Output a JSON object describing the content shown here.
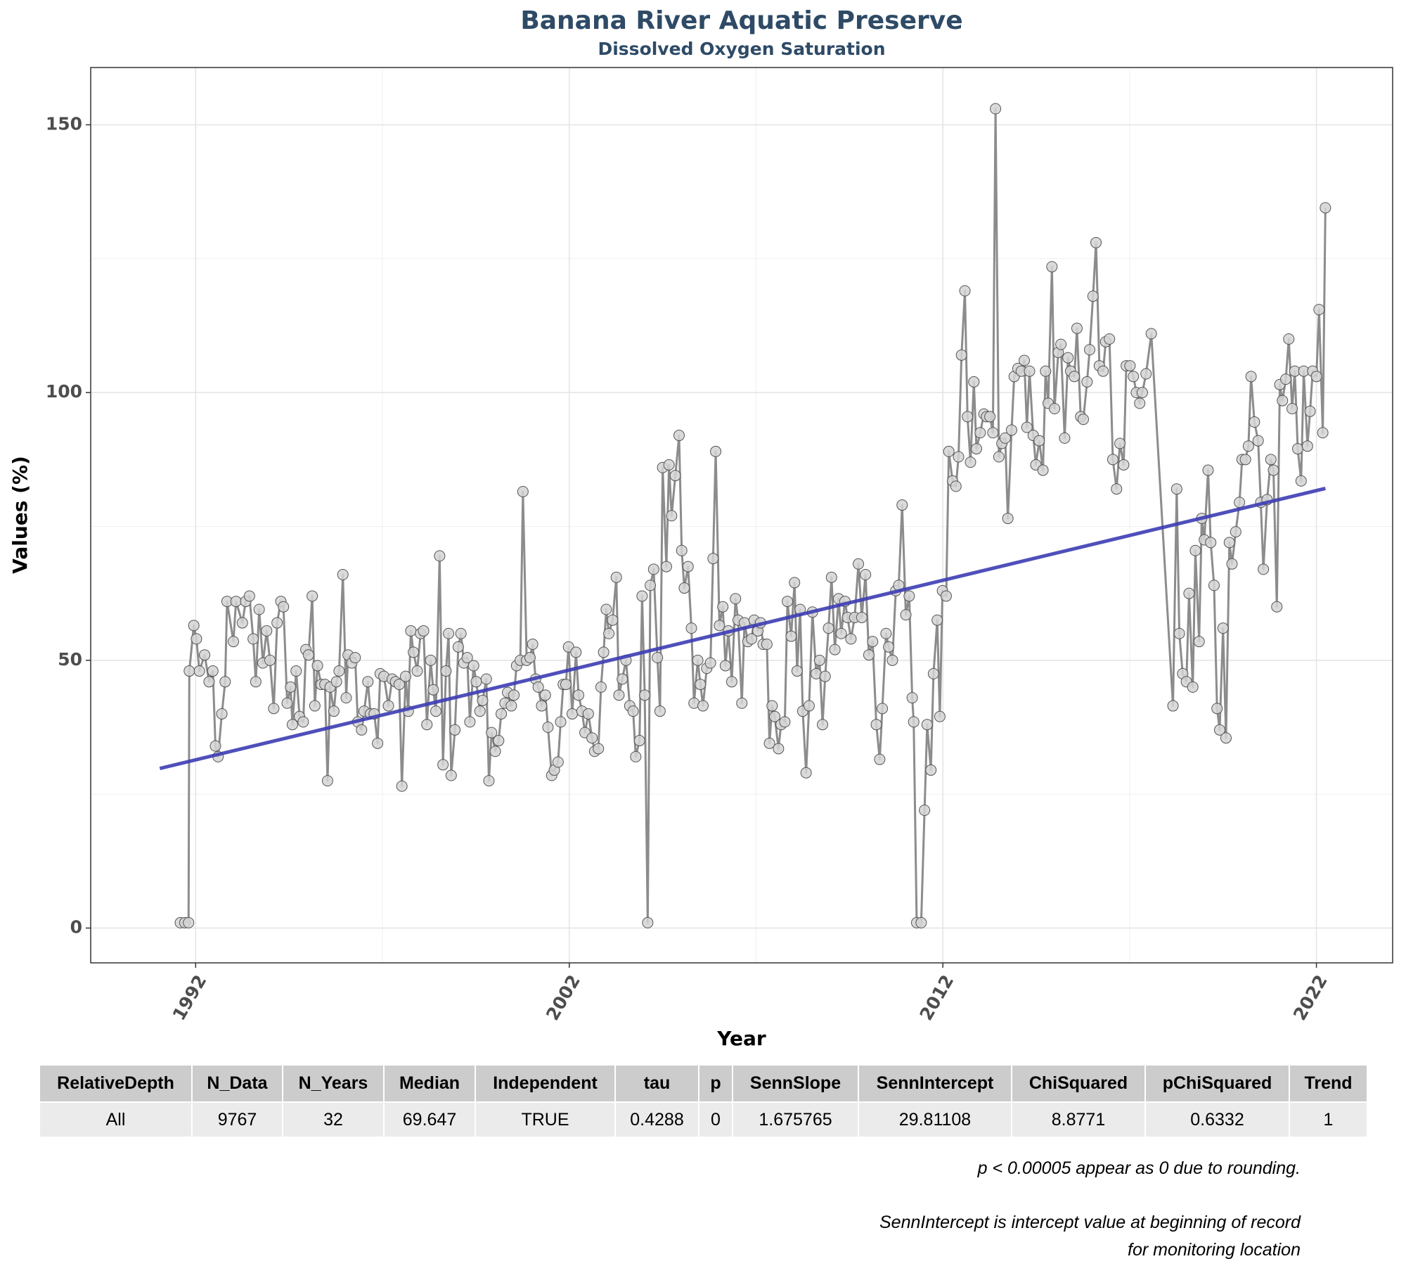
{
  "chart_data": {
    "type": "line",
    "title": "Banana River Aquatic Preserve",
    "subtitle": "Dissolved Oxygen Saturation",
    "x_label": "Year",
    "y_label": "Values (%)",
    "color": "#8c8c8c",
    "marker_color": "#d3d3d3",
    "marker_edge_color": "#555555",
    "x": [
      1991.59,
      1991.71,
      1991.81,
      1991.83,
      1991.95,
      1992.02,
      1992.1,
      1992.24,
      1992.36,
      1992.46,
      1992.53,
      1992.6,
      1992.7,
      1992.79,
      1992.84,
      1993.01,
      1993.08,
      1993.25,
      1993.34,
      1993.44,
      1993.54,
      1993.61,
      1993.7,
      1993.8,
      1993.9,
      1993.99,
      1994.09,
      1994.18,
      1994.28,
      1994.35,
      1994.45,
      1994.54,
      1994.59,
      1994.69,
      1994.78,
      1994.88,
      1994.95,
      1995.02,
      1995.12,
      1995.19,
      1995.26,
      1995.36,
      1995.46,
      1995.53,
      1995.6,
      1995.7,
      1995.77,
      1995.84,
      1995.94,
      1996.03,
      1996.08,
      1996.18,
      1996.27,
      1996.34,
      1996.44,
      1996.51,
      1996.61,
      1996.68,
      1996.78,
      1996.87,
      1996.94,
      1997.04,
      1997.16,
      1997.26,
      1997.35,
      1997.45,
      1997.52,
      1997.62,
      1997.69,
      1997.76,
      1997.83,
      1997.93,
      1998.02,
      1998.1,
      1998.19,
      1998.29,
      1998.36,
      1998.43,
      1998.53,
      1998.62,
      1998.7,
      1998.77,
      1998.84,
      1998.94,
      1999.03,
      1999.1,
      1999.18,
      1999.27,
      1999.34,
      1999.44,
      1999.51,
      1999.61,
      1999.68,
      1999.78,
      1999.85,
      1999.92,
      2000.02,
      2000.11,
      2000.18,
      2000.28,
      2000.35,
      2000.45,
      2000.52,
      2000.59,
      2000.69,
      2000.76,
      2000.86,
      2000.95,
      2001.02,
      2001.1,
      2001.17,
      2001.26,
      2001.36,
      2001.43,
      2001.53,
      2001.6,
      2001.7,
      2001.77,
      2001.84,
      2001.91,
      2001.98,
      2002.08,
      2002.18,
      2002.25,
      2002.34,
      2002.42,
      2002.51,
      2002.61,
      2002.68,
      2002.78,
      2002.85,
      2002.92,
      2002.99,
      2003.06,
      2003.16,
      2003.26,
      2003.33,
      2003.42,
      2003.52,
      2003.62,
      2003.71,
      2003.78,
      2003.88,
      2003.95,
      2004.02,
      2004.1,
      2004.17,
      2004.26,
      2004.36,
      2004.43,
      2004.5,
      2004.6,
      2004.67,
      2004.74,
      2004.84,
      2004.94,
      2005.01,
      2005.08,
      2005.18,
      2005.27,
      2005.34,
      2005.44,
      2005.51,
      2005.58,
      2005.68,
      2005.78,
      2005.85,
      2005.92,
      2006.02,
      2006.11,
      2006.18,
      2006.26,
      2006.35,
      2006.45,
      2006.52,
      2006.62,
      2006.69,
      2006.78,
      2006.88,
      2006.95,
      2007.05,
      2007.12,
      2007.19,
      2007.29,
      2007.36,
      2007.43,
      2007.5,
      2007.6,
      2007.67,
      2007.77,
      2007.84,
      2007.94,
      2008.03,
      2008.1,
      2008.18,
      2008.25,
      2008.34,
      2008.42,
      2008.51,
      2008.61,
      2008.7,
      2008.78,
      2008.85,
      2008.94,
      2009.02,
      2009.11,
      2009.21,
      2009.28,
      2009.38,
      2009.45,
      2009.54,
      2009.64,
      2009.74,
      2009.83,
      2009.93,
      2010.02,
      2010.12,
      2010.22,
      2010.31,
      2010.38,
      2010.48,
      2010.55,
      2010.65,
      2010.74,
      2010.82,
      2010.91,
      2011.01,
      2011.1,
      2011.18,
      2011.22,
      2011.3,
      2011.42,
      2011.51,
      2011.58,
      2011.68,
      2011.75,
      2011.85,
      2011.92,
      2011.99,
      2012.09,
      2012.16,
      2012.26,
      2012.35,
      2012.42,
      2012.5,
      2012.59,
      2012.66,
      2012.74,
      2012.83,
      2012.9,
      2013.0,
      2013.1,
      2013.17,
      2013.26,
      2013.34,
      2013.41,
      2013.5,
      2013.58,
      2013.67,
      2013.74,
      2013.84,
      2013.91,
      2014.01,
      2014.1,
      2014.18,
      2014.25,
      2014.32,
      2014.42,
      2014.49,
      2014.58,
      2014.68,
      2014.75,
      2014.82,
      2014.92,
      2014.99,
      2015.09,
      2015.16,
      2015.26,
      2015.35,
      2015.42,
      2015.52,
      2015.59,
      2015.69,
      2015.76,
      2015.86,
      2015.93,
      2016.02,
      2016.1,
      2016.19,
      2016.29,
      2016.36,
      2016.46,
      2016.55,
      2016.65,
      2016.74,
      2016.84,
      2016.91,
      2017.01,
      2017.1,
      2017.18,
      2017.27,
      2017.34,
      2017.44,
      2017.58,
      2018.16,
      2018.26,
      2018.33,
      2018.42,
      2018.52,
      2018.59,
      2018.69,
      2018.76,
      2018.86,
      2018.93,
      2019.0,
      2019.1,
      2019.17,
      2019.26,
      2019.34,
      2019.41,
      2019.5,
      2019.58,
      2019.67,
      2019.74,
      2019.84,
      2019.94,
      2020.01,
      2020.1,
      2020.18,
      2020.25,
      2020.34,
      2020.44,
      2020.51,
      2020.58,
      2020.68,
      2020.78,
      2020.85,
      2020.94,
      2021.02,
      2021.09,
      2021.18,
      2021.26,
      2021.35,
      2021.42,
      2021.5,
      2021.59,
      2021.66,
      2021.76,
      2021.83,
      2021.9,
      2022.0,
      2022.07,
      2022.17,
      2022.24
    ],
    "values": [
      1,
      1,
      1,
      48,
      56.5,
      54,
      48,
      51,
      46,
      48,
      34,
      32,
      40,
      46,
      61,
      53.5,
      61,
      57,
      61,
      62,
      54,
      46,
      59.5,
      49.5,
      55.5,
      50,
      41,
      57,
      61,
      60,
      42,
      45,
      38,
      48,
      39.5,
      38.5,
      52,
      51,
      62,
      41.5,
      49,
      45.5,
      45.5,
      27.5,
      45,
      40.5,
      46,
      48,
      66,
      43,
      51,
      49.5,
      50.5,
      38.5,
      37,
      40.5,
      46,
      40,
      40,
      34.5,
      47.5,
      47,
      41.5,
      46.5,
      46,
      45.5,
      26.5,
      47,
      40.5,
      55.5,
      51.5,
      48,
      55,
      55.5,
      38,
      50,
      44.5,
      40.5,
      69.5,
      30.5,
      48,
      55,
      28.5,
      37,
      52.5,
      55,
      49.5,
      50.5,
      38.5,
      49,
      46,
      40.5,
      42.5,
      46.5,
      27.5,
      36.5,
      33,
      35,
      40,
      42,
      44,
      41.5,
      43.5,
      49,
      50,
      81.5,
      50,
      50.5,
      53,
      46.5,
      45,
      41.5,
      43.5,
      37.5,
      28.5,
      29.5,
      31,
      38.5,
      45.5,
      45.5,
      52.5,
      40,
      51.5,
      43.5,
      40.5,
      36.5,
      40,
      35.5,
      33,
      33.5,
      45,
      51.5,
      59.5,
      55,
      57.5,
      65.5,
      43.5,
      46.5,
      50,
      41.5,
      40.5,
      32,
      35,
      62,
      43.5,
      1,
      64,
      67,
      50.5,
      40.5,
      86,
      67.5,
      86.5,
      77,
      84.5,
      92,
      70.5,
      63.5,
      67.5,
      56,
      42,
      50,
      45.5,
      41.5,
      48.5,
      49.5,
      69,
      89,
      56.5,
      60,
      49,
      55.5,
      46,
      61.5,
      57.5,
      42,
      57,
      53.5,
      54,
      57.5,
      55.5,
      57,
      53,
      53,
      34.5,
      41.5,
      39.5,
      33.5,
      38,
      38.5,
      61,
      54.5,
      64.5,
      48,
      59.5,
      40.5,
      29,
      41.5,
      59,
      47.5,
      50,
      38,
      47,
      56,
      65.5,
      52,
      61.5,
      55,
      61,
      58,
      54,
      58,
      68,
      58,
      66,
      51,
      53.5,
      38,
      31.5,
      41,
      55,
      52.5,
      50,
      63,
      64,
      79,
      58.5,
      62,
      43,
      38.5,
      1,
      1,
      22,
      38,
      29.5,
      47.5,
      57.5,
      39.5,
      63,
      62,
      89,
      83.5,
      82.5,
      88,
      107,
      119,
      95.5,
      87,
      102,
      89.5,
      92.5,
      96,
      95.5,
      95.5,
      92.5,
      153,
      88,
      90.5,
      91.5,
      76.5,
      93,
      103,
      104.5,
      104,
      106,
      93.5,
      104,
      92,
      86.5,
      91,
      85.5,
      104,
      98,
      123.5,
      97,
      107.5,
      109,
      91.5,
      106.5,
      104,
      103,
      112,
      95.5,
      95,
      102,
      108,
      118,
      128,
      105,
      104,
      109.5,
      110,
      87.5,
      82,
      90.5,
      86.5,
      105,
      105,
      103,
      100,
      98,
      100,
      103.5,
      111,
      41.5,
      82,
      55,
      47.5,
      46,
      62.5,
      45,
      70.5,
      53.5,
      76.5,
      72.5,
      85.5,
      72,
      64,
      41,
      37,
      56,
      35.5,
      72,
      68,
      74,
      79.5,
      87.5,
      87.5,
      90,
      103,
      94.5,
      91,
      79.5,
      67,
      80,
      87.5,
      85.5,
      60,
      101.5,
      98.5,
      102.5,
      110,
      97,
      104,
      89.5,
      83.5,
      104,
      90,
      96.5,
      104,
      103,
      115.5,
      92.5,
      134.5
    ],
    "trend": {
      "x": [
        1991.04,
        2022.24
      ],
      "values": [
        29.8,
        82.1
      ],
      "color": "#3c3cb4"
    },
    "xlim": [
      1989.19,
      2024.04
    ],
    "xticks": [
      1992,
      2002,
      2012,
      2022
    ],
    "ylim": [
      -6.5,
      160.7
    ],
    "yticks": [
      0,
      50,
      100,
      150
    ],
    "grid": true
  },
  "table": {
    "columns": [
      "RelativeDepth",
      "N_Data",
      "N_Years",
      "Median",
      "Independent",
      "tau",
      "p",
      "SennSlope",
      "SennIntercept",
      "ChiSquared",
      "pChiSquared",
      "Trend"
    ],
    "rows": [
      [
        "All",
        "9767",
        "32",
        "69.647",
        "TRUE",
        "0.4288",
        "0",
        "1.675765",
        "29.81108",
        "8.8771",
        "0.6332",
        "1"
      ]
    ]
  },
  "notes": [
    "p < 0.00005 appear as 0 due to rounding.",
    "SennIntercept is intercept value at beginning of record for monitoring location"
  ]
}
